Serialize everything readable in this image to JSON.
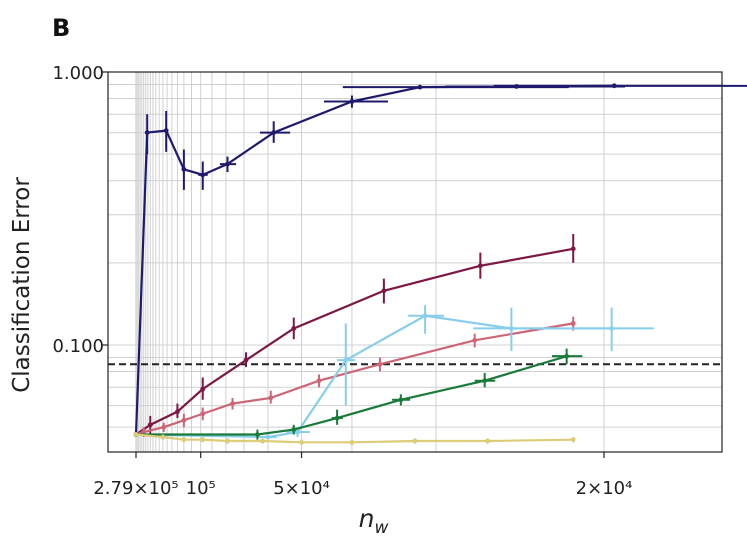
{
  "panel_label": "B",
  "chart_data": {
    "type": "line",
    "xlabel_main": "n",
    "xlabel_sub": "w",
    "ylabel": "Classification Error",
    "x_scale": "reciprocal",
    "x_ticks": [
      {
        "value": 279000,
        "label": "2.79×10⁵"
      },
      {
        "value": 100000,
        "label": "10⁵"
      },
      {
        "value": 50000,
        "label": "5×10⁴"
      },
      {
        "value": 20000,
        "label": "2×10⁴"
      }
    ],
    "y_scale": "log",
    "y_ticks": [
      {
        "value": 0.1,
        "label": "0.100"
      },
      {
        "value": 1.0,
        "label": "1.000"
      }
    ],
    "ylim": [
      0.039,
      1.0
    ],
    "grid": true,
    "reference_line": {
      "y": 0.085,
      "style": "dashed",
      "color": "#222222"
    },
    "series": [
      {
        "color": "#1f1a6e",
        "points": [
          {
            "x": 279000,
            "y": 0.047,
            "yerr": [
              0.047,
              0.047
            ],
            "xerr": 0
          },
          {
            "x": 213000,
            "y": 0.6,
            "yerr": [
              0.5,
              0.7
            ],
            "xerr": 2000
          },
          {
            "x": 152000,
            "y": 0.61,
            "yerr": [
              0.51,
              0.72
            ],
            "xerr": 0
          },
          {
            "x": 120000,
            "y": 0.44,
            "yerr": [
              0.37,
              0.52
            ],
            "xerr": 3000
          },
          {
            "x": 98000,
            "y": 0.42,
            "yerr": [
              0.37,
              0.47
            ],
            "xerr": 4500
          },
          {
            "x": 79000,
            "y": 0.46,
            "yerr": [
              0.43,
              0.49
            ],
            "xerr": 5000
          },
          {
            "x": 58000,
            "y": 0.6,
            "yerr": [
              0.55,
              0.66
            ],
            "xerr": 5000
          },
          {
            "x": 40000,
            "y": 0.78,
            "yerr": [
              0.74,
              0.82
            ],
            "xerr": 5000
          },
          {
            "x": 31500,
            "y": 0.88,
            "yerr": [
              0.88,
              0.88
            ],
            "xerr": 10000
          },
          {
            "x": 24200,
            "y": 0.885,
            "yerr": [
              0.885,
              0.885
            ],
            "xerr": 5000
          },
          {
            "x": 19600,
            "y": 0.89,
            "yerr": [
              0.89,
              0.89
            ],
            "xerr": 6000
          }
        ]
      },
      {
        "color": "#7c1746",
        "points": [
          {
            "x": 279000,
            "y": 0.047,
            "yerr": [
              0.047,
              0.047
            ],
            "xerr": 0
          },
          {
            "x": 200000,
            "y": 0.051,
            "yerr": [
              0.047,
              0.055
            ],
            "xerr": 0
          },
          {
            "x": 130000,
            "y": 0.057,
            "yerr": [
              0.054,
              0.061
            ],
            "xerr": 0
          },
          {
            "x": 98000,
            "y": 0.069,
            "yerr": [
              0.063,
              0.076
            ],
            "xerr": 0
          },
          {
            "x": 69000,
            "y": 0.088,
            "yerr": [
              0.083,
              0.094
            ],
            "xerr": 0
          },
          {
            "x": 52000,
            "y": 0.115,
            "yerr": [
              0.105,
              0.126
            ],
            "xerr": 0
          },
          {
            "x": 35500,
            "y": 0.158,
            "yerr": [
              0.142,
              0.175
            ],
            "xerr": 0
          },
          {
            "x": 26500,
            "y": 0.195,
            "yerr": [
              0.175,
              0.218
            ],
            "xerr": 0
          },
          {
            "x": 21300,
            "y": 0.225,
            "yerr": [
              0.2,
              0.255
            ],
            "xerr": 0
          }
        ]
      },
      {
        "color": "#cc6677",
        "points": [
          {
            "x": 279000,
            "y": 0.047,
            "yerr": [
              0.047,
              0.047
            ],
            "xerr": 0
          },
          {
            "x": 230000,
            "y": 0.048,
            "yerr": [
              0.046,
              0.05
            ],
            "xerr": 0
          },
          {
            "x": 158000,
            "y": 0.05,
            "yerr": [
              0.048,
              0.052
            ],
            "xerr": 0
          },
          {
            "x": 120000,
            "y": 0.053,
            "yerr": [
              0.05,
              0.056
            ],
            "xerr": 0
          },
          {
            "x": 98000,
            "y": 0.056,
            "yerr": [
              0.053,
              0.059
            ],
            "xerr": 0
          },
          {
            "x": 76000,
            "y": 0.061,
            "yerr": [
              0.058,
              0.064
            ],
            "xerr": 0
          },
          {
            "x": 59000,
            "y": 0.064,
            "yerr": [
              0.061,
              0.068
            ],
            "xerr": 0
          },
          {
            "x": 46000,
            "y": 0.074,
            "yerr": [
              0.07,
              0.078
            ],
            "xerr": 0
          },
          {
            "x": 36000,
            "y": 0.085,
            "yerr": [
              0.08,
              0.09
            ],
            "xerr": 0
          },
          {
            "x": 26900,
            "y": 0.104,
            "yerr": [
              0.098,
              0.11
            ],
            "xerr": 0
          },
          {
            "x": 21300,
            "y": 0.12,
            "yerr": [
              0.113,
              0.127
            ],
            "xerr": 0
          }
        ]
      },
      {
        "color": "#87ceeb",
        "points": [
          {
            "x": 279000,
            "y": 0.047,
            "yerr": [
              0.047,
              0.047
            ],
            "xerr": 0
          },
          {
            "x": 60000,
            "y": 0.046,
            "yerr": [
              0.046,
              0.046
            ],
            "xerr": 3000
          },
          {
            "x": 51000,
            "y": 0.048,
            "yerr": [
              0.046,
              0.05
            ],
            "xerr": 3000
          },
          {
            "x": 41000,
            "y": 0.088,
            "yerr": [
              0.06,
              0.12
            ],
            "xerr": 1500
          },
          {
            "x": 31000,
            "y": 0.128,
            "yerr": [
              0.11,
              0.14
            ],
            "xerr": 1700
          },
          {
            "x": 24500,
            "y": 0.115,
            "yerr": [
              0.095,
              0.137
            ],
            "xerr": 2500
          },
          {
            "x": 19700,
            "y": 0.115,
            "yerr": [
              0.095,
              0.137
            ],
            "xerr": 1500
          }
        ]
      },
      {
        "color": "#1a7a3a",
        "points": [
          {
            "x": 279000,
            "y": 0.047,
            "yerr": [
              0.047,
              0.047
            ],
            "xerr": 0
          },
          {
            "x": 64000,
            "y": 0.047,
            "yerr": [
              0.045,
              0.049
            ],
            "xerr": 1000
          },
          {
            "x": 52000,
            "y": 0.049,
            "yerr": [
              0.047,
              0.051
            ],
            "xerr": 0
          },
          {
            "x": 42500,
            "y": 0.054,
            "yerr": [
              0.051,
              0.058
            ],
            "xerr": 1000
          },
          {
            "x": 33500,
            "y": 0.063,
            "yerr": [
              0.06,
              0.066
            ],
            "xerr": 1000
          },
          {
            "x": 26200,
            "y": 0.074,
            "yerr": [
              0.07,
              0.079
            ],
            "xerr": 700
          },
          {
            "x": 21600,
            "y": 0.091,
            "yerr": [
              0.085,
              0.097
            ],
            "xerr": 700
          }
        ]
      },
      {
        "color": "#ddcc77",
        "points": [
          {
            "x": 279000,
            "y": 0.047,
            "yerr": [
              0.047,
              0.047
            ],
            "xerr": 0
          },
          {
            "x": 160000,
            "y": 0.046,
            "yerr": [
              0.045,
              0.047
            ],
            "xerr": 0
          },
          {
            "x": 120000,
            "y": 0.045,
            "yerr": [
              0.044,
              0.046
            ],
            "xerr": 0
          },
          {
            "x": 98000,
            "y": 0.045,
            "yerr": [
              0.044,
              0.046
            ],
            "xerr": 0
          },
          {
            "x": 79000,
            "y": 0.0445,
            "yerr": [
              0.0435,
              0.0455
            ],
            "xerr": 0
          },
          {
            "x": 62000,
            "y": 0.0445,
            "yerr": [
              0.0435,
              0.0455
            ],
            "xerr": 0
          },
          {
            "x": 50000,
            "y": 0.044,
            "yerr": [
              0.043,
              0.045
            ],
            "xerr": 0
          },
          {
            "x": 40000,
            "y": 0.044,
            "yerr": [
              0.043,
              0.045
            ],
            "xerr": 0
          },
          {
            "x": 32000,
            "y": 0.0445,
            "yerr": [
              0.0435,
              0.0455
            ],
            "xerr": 0
          },
          {
            "x": 26000,
            "y": 0.0445,
            "yerr": [
              0.0435,
              0.0455
            ],
            "xerr": 0
          },
          {
            "x": 21300,
            "y": 0.045,
            "yerr": [
              0.044,
              0.046
            ],
            "xerr": 0
          }
        ]
      }
    ]
  }
}
